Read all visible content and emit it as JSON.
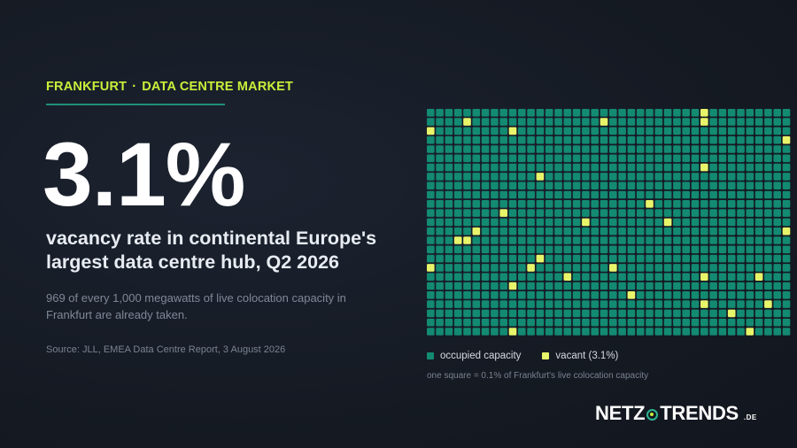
{
  "kicker": {
    "city": "FRANKFURT",
    "separator": "·",
    "topic": "DATA CENTRE MARKET"
  },
  "headline": {
    "stat": "3.1%",
    "line": "vacancy rate in continental Europe's largest data centre hub, Q2 2026"
  },
  "subtext": "969 of every 1,000 megawatts of live colocation capacity in Frankfurt are already taken.",
  "source": "Source: JLL, EMEA Data Centre Report, 3 August 2026",
  "legend": {
    "occupied_label": "occupied capacity",
    "vacant_label": "vacant (3.1%)",
    "note": "one square = 0.1% of Frankfurt's live colocation capacity"
  },
  "logo": {
    "left": "NETZ",
    "right": "TRENDS",
    "tld": ".DE"
  },
  "colors": {
    "occupied": "#138a72",
    "vacant": "#e8f56a",
    "accent": "#c8f03a",
    "logo_ring": "#2bb594"
  },
  "chart_data": {
    "type": "waffle",
    "total_squares": 1000,
    "grid": {
      "columns": 40,
      "rows": 25
    },
    "square_value_percent": 0.1,
    "series": [
      {
        "name": "occupied capacity",
        "count": 969,
        "percent": 96.9
      },
      {
        "name": "vacant (3.1%)",
        "count": 31,
        "percent": 3.1
      }
    ],
    "vacant_cells": [
      [
        0,
        30
      ],
      [
        1,
        4
      ],
      [
        1,
        19
      ],
      [
        1,
        30
      ],
      [
        2,
        0
      ],
      [
        2,
        9
      ],
      [
        3,
        39
      ],
      [
        6,
        30
      ],
      [
        7,
        12
      ],
      [
        10,
        24
      ],
      [
        11,
        8
      ],
      [
        12,
        17
      ],
      [
        13,
        5
      ],
      [
        13,
        39
      ],
      [
        14,
        3
      ],
      [
        14,
        4
      ],
      [
        16,
        12
      ],
      [
        17,
        0
      ],
      [
        17,
        11
      ],
      [
        17,
        20
      ],
      [
        18,
        15
      ],
      [
        18,
        30
      ],
      [
        18,
        36
      ],
      [
        19,
        9
      ],
      [
        20,
        22
      ],
      [
        21,
        30
      ],
      [
        21,
        37
      ],
      [
        22,
        33
      ],
      [
        24,
        9
      ],
      [
        24,
        35
      ],
      [
        12,
        26
      ]
    ]
  }
}
